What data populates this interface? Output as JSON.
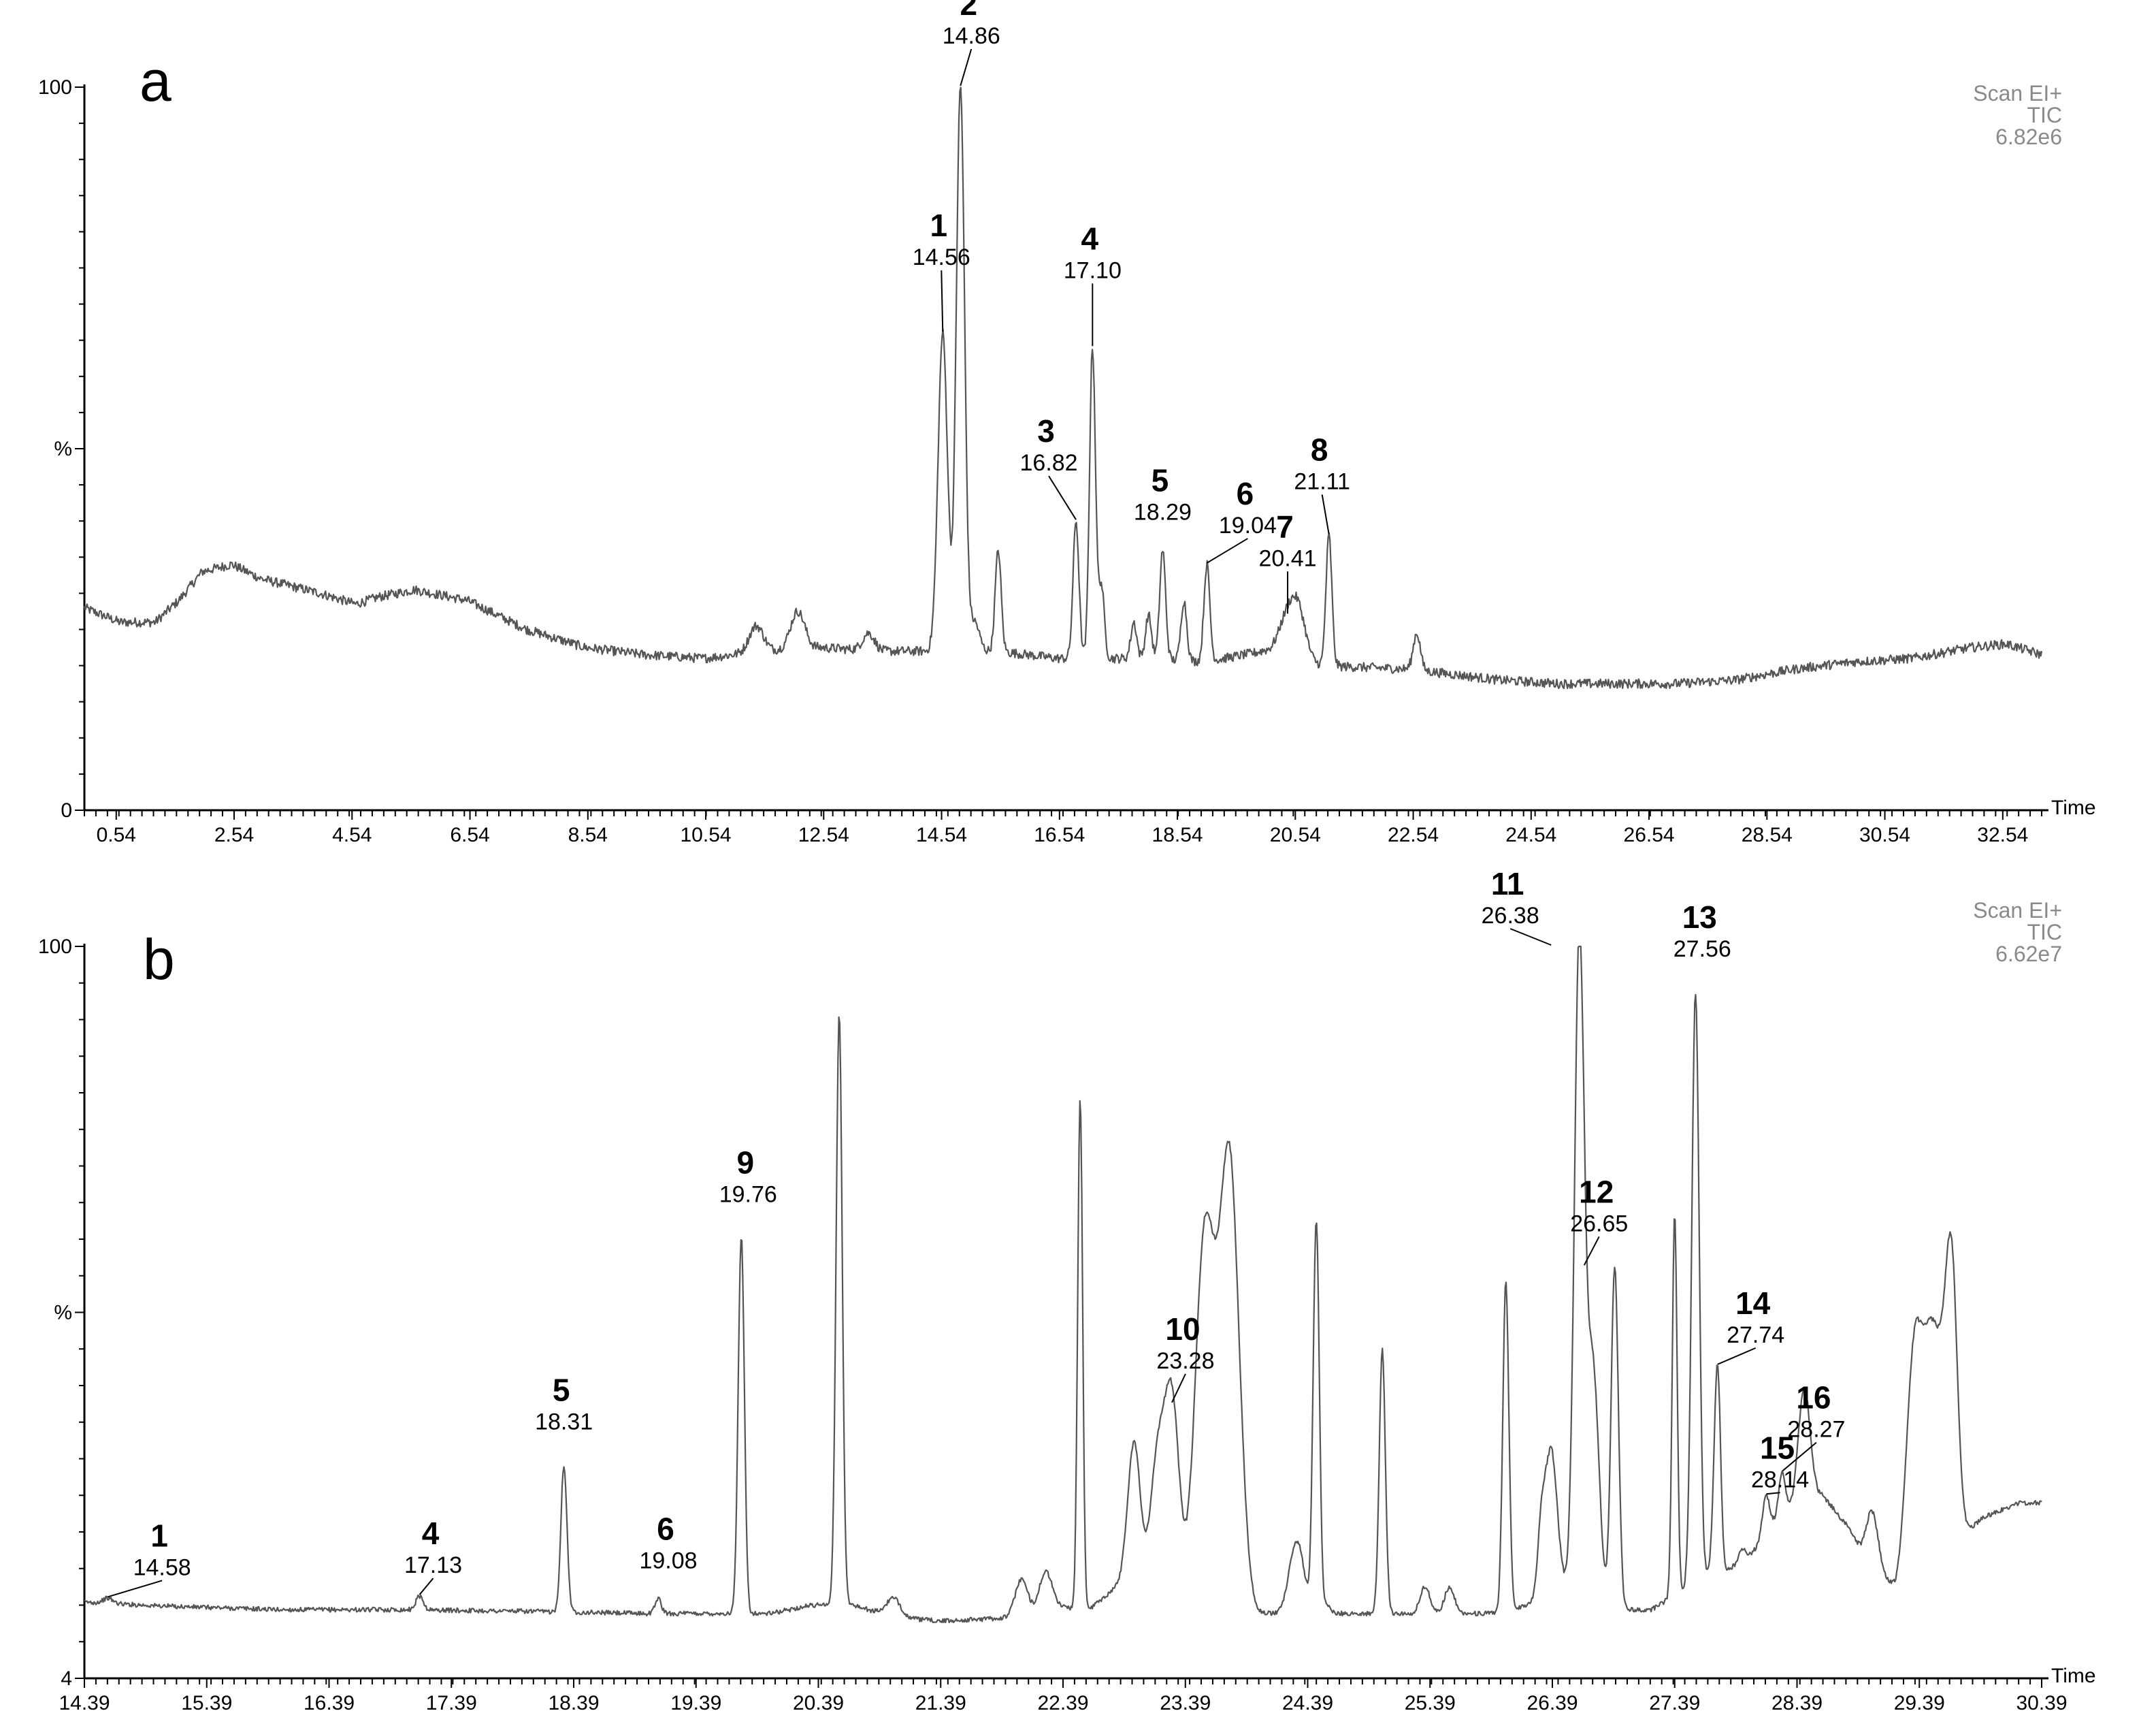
{
  "chart_data": [
    {
      "type": "line",
      "panel_label": "a",
      "info": [
        "Scan EI+",
        "TIC",
        "6.82e6"
      ],
      "xlabel": "Time",
      "ylabel": "%",
      "xlim": [
        0.0,
        33.2
      ],
      "ylim": [
        0,
        100
      ],
      "x_ticks": [
        "0.54",
        "2.54",
        "4.54",
        "6.54",
        "8.54",
        "10.54",
        "12.54",
        "14.54",
        "16.54",
        "18.54",
        "20.54",
        "22.54",
        "24.54",
        "26.54",
        "28.54",
        "30.54",
        "32.54"
      ],
      "x_tick_values": [
        0.54,
        2.54,
        4.54,
        6.54,
        8.54,
        10.54,
        12.54,
        14.54,
        16.54,
        18.54,
        20.54,
        22.54,
        24.54,
        26.54,
        28.54,
        30.54,
        32.54
      ],
      "y_ticks": [
        "0",
        "%",
        "100"
      ],
      "y_tick_values": [
        0,
        50,
        100
      ],
      "baseline": [
        [
          0.0,
          28
        ],
        [
          0.6,
          26
        ],
        [
          1.2,
          26
        ],
        [
          1.6,
          29
        ],
        [
          2.0,
          33
        ],
        [
          2.5,
          34
        ],
        [
          3.0,
          32
        ],
        [
          4.0,
          30
        ],
        [
          4.6,
          28.5
        ],
        [
          5.0,
          29.5
        ],
        [
          5.6,
          30.5
        ],
        [
          6.5,
          29
        ],
        [
          7.5,
          25
        ],
        [
          8.5,
          22.5
        ],
        [
          9.5,
          21.5
        ],
        [
          10.5,
          21
        ],
        [
          11.5,
          22
        ],
        [
          12.5,
          22.5
        ],
        [
          13.5,
          22
        ],
        [
          14.3,
          22
        ],
        [
          15.5,
          22
        ],
        [
          16.5,
          21
        ],
        [
          18.0,
          21
        ],
        [
          19.0,
          20.5
        ],
        [
          20.0,
          22
        ],
        [
          21.0,
          20
        ],
        [
          22.5,
          19.5
        ],
        [
          24.0,
          18
        ],
        [
          25.0,
          17.5
        ],
        [
          26.0,
          17.5
        ],
        [
          27.0,
          17.5
        ],
        [
          28.0,
          18
        ],
        [
          29.0,
          19.5
        ],
        [
          30.0,
          20.5
        ],
        [
          31.0,
          21
        ],
        [
          32.0,
          22.5
        ],
        [
          32.6,
          23
        ],
        [
          33.2,
          21.5
        ]
      ],
      "peaks": [
        {
          "x": 11.4,
          "y": 25.5,
          "w": 0.12
        },
        {
          "x": 12.1,
          "y": 27.5,
          "w": 0.12
        },
        {
          "x": 13.3,
          "y": 24.5,
          "w": 0.1
        },
        {
          "x": 14.56,
          "y": 66,
          "w": 0.08
        },
        {
          "x": 14.86,
          "y": 100,
          "w": 0.07
        },
        {
          "x": 15.1,
          "y": 26,
          "w": 0.08
        },
        {
          "x": 15.5,
          "y": 36,
          "w": 0.05
        },
        {
          "x": 16.82,
          "y": 40,
          "w": 0.05
        },
        {
          "x": 17.1,
          "y": 64,
          "w": 0.05
        },
        {
          "x": 17.25,
          "y": 31,
          "w": 0.05
        },
        {
          "x": 17.8,
          "y": 26,
          "w": 0.05
        },
        {
          "x": 18.05,
          "y": 27,
          "w": 0.05
        },
        {
          "x": 18.29,
          "y": 36,
          "w": 0.05
        },
        {
          "x": 18.65,
          "y": 29,
          "w": 0.05
        },
        {
          "x": 19.04,
          "y": 34,
          "w": 0.05
        },
        {
          "x": 20.41,
          "y": 27,
          "w": 0.15
        },
        {
          "x": 20.6,
          "y": 26,
          "w": 0.12
        },
        {
          "x": 21.11,
          "y": 38,
          "w": 0.05
        },
        {
          "x": 22.6,
          "y": 24.5,
          "w": 0.06
        }
      ],
      "labels": [
        {
          "num": "1",
          "rt": "14.56",
          "x": 14.56,
          "y": 66
        },
        {
          "num": "2",
          "rt": "14.86",
          "x": 14.86,
          "y": 100
        },
        {
          "num": "3",
          "rt": "16.82",
          "x": 16.82,
          "y": 40
        },
        {
          "num": "4",
          "rt": "17.10",
          "x": 17.1,
          "y": 64
        },
        {
          "num": "5",
          "rt": "18.29",
          "x": 18.29,
          "y": 36
        },
        {
          "num": "6",
          "rt": "19.04",
          "x": 19.04,
          "y": 34
        },
        {
          "num": "7",
          "rt": "20.41",
          "x": 20.41,
          "y": 27
        },
        {
          "num": "8",
          "rt": "21.11",
          "x": 21.11,
          "y": 38
        }
      ]
    },
    {
      "type": "line",
      "panel_label": "b",
      "info": [
        "Scan EI+",
        "TIC",
        "6.62e7"
      ],
      "xlabel": "Time",
      "ylabel": "%",
      "xlim": [
        14.39,
        30.39
      ],
      "ylim": [
        4,
        100
      ],
      "x_ticks": [
        "14.39",
        "15.39",
        "16.39",
        "17.39",
        "18.39",
        "19.39",
        "20.39",
        "21.39",
        "22.39",
        "23.39",
        "24.39",
        "25.39",
        "26.39",
        "27.39",
        "28.39",
        "29.39",
        "30.39"
      ],
      "x_tick_values": [
        14.39,
        15.39,
        16.39,
        17.39,
        18.39,
        19.39,
        20.39,
        21.39,
        22.39,
        23.39,
        24.39,
        25.39,
        26.39,
        27.39,
        28.39,
        29.39,
        30.39
      ],
      "y_ticks": [
        "4",
        "%",
        "100"
      ],
      "y_tick_values": [
        4,
        52,
        100
      ],
      "baseline": [
        [
          14.39,
          14
        ],
        [
          15.0,
          13.5
        ],
        [
          16.0,
          13
        ],
        [
          17.0,
          13
        ],
        [
          18.0,
          12.8
        ],
        [
          19.0,
          12.5
        ],
        [
          20.0,
          12.5
        ],
        [
          20.3,
          13.5
        ],
        [
          20.6,
          14
        ],
        [
          21.0,
          12
        ],
        [
          21.4,
          11.5
        ],
        [
          22.0,
          12
        ],
        [
          22.3,
          13.5
        ],
        [
          22.6,
          13
        ],
        [
          22.9,
          17
        ],
        [
          23.3,
          13
        ],
        [
          23.6,
          12.5
        ],
        [
          24.0,
          12.5
        ],
        [
          24.5,
          12.5
        ],
        [
          25.0,
          12.5
        ],
        [
          25.5,
          12.5
        ],
        [
          26.0,
          12.5
        ],
        [
          26.3,
          14.5
        ],
        [
          26.5,
          15.5
        ],
        [
          26.8,
          13
        ],
        [
          27.2,
          13
        ],
        [
          27.4,
          15
        ],
        [
          27.6,
          17
        ],
        [
          27.8,
          18
        ],
        [
          28.0,
          20
        ],
        [
          28.2,
          24
        ],
        [
          28.4,
          26
        ],
        [
          28.6,
          28
        ],
        [
          28.8,
          24
        ],
        [
          29.0,
          18
        ],
        [
          29.2,
          16
        ],
        [
          29.4,
          24
        ],
        [
          29.6,
          30
        ],
        [
          29.7,
          22
        ],
        [
          29.9,
          25
        ],
        [
          30.2,
          27
        ],
        [
          30.39,
          27
        ]
      ],
      "peaks": [
        {
          "x": 14.58,
          "y": 14.5,
          "w": 0.04
        },
        {
          "x": 17.13,
          "y": 14.8,
          "w": 0.03
        },
        {
          "x": 18.31,
          "y": 32,
          "w": 0.025
        },
        {
          "x": 19.08,
          "y": 14.5,
          "w": 0.025
        },
        {
          "x": 19.76,
          "y": 62,
          "w": 0.025
        },
        {
          "x": 20.56,
          "y": 91,
          "w": 0.025
        },
        {
          "x": 21.0,
          "y": 14.5,
          "w": 0.06
        },
        {
          "x": 22.05,
          "y": 17,
          "w": 0.05
        },
        {
          "x": 22.25,
          "y": 18,
          "w": 0.05
        },
        {
          "x": 22.53,
          "y": 80,
          "w": 0.02
        },
        {
          "x": 22.97,
          "y": 35,
          "w": 0.05
        },
        {
          "x": 23.16,
          "y": 32,
          "w": 0.06
        },
        {
          "x": 23.28,
          "y": 40,
          "w": 0.06
        },
        {
          "x": 23.55,
          "y": 62,
          "w": 0.08
        },
        {
          "x": 23.75,
          "y": 72,
          "w": 0.08
        },
        {
          "x": 24.3,
          "y": 22,
          "w": 0.06
        },
        {
          "x": 24.46,
          "y": 64,
          "w": 0.025
        },
        {
          "x": 24.55,
          "y": 13.5,
          "w": 0.03
        },
        {
          "x": 25.0,
          "y": 47,
          "w": 0.025
        },
        {
          "x": 25.35,
          "y": 16,
          "w": 0.04
        },
        {
          "x": 25.55,
          "y": 16,
          "w": 0.04
        },
        {
          "x": 26.01,
          "y": 56,
          "w": 0.025
        },
        {
          "x": 26.3,
          "y": 22,
          "w": 0.03
        },
        {
          "x": 26.38,
          "y": 34,
          "w": 0.05
        },
        {
          "x": 26.61,
          "y": 100,
          "w": 0.04
        },
        {
          "x": 26.72,
          "y": 45,
          "w": 0.05
        },
        {
          "x": 26.9,
          "y": 58,
          "w": 0.03
        },
        {
          "x": 27.39,
          "y": 65,
          "w": 0.02
        },
        {
          "x": 27.56,
          "y": 94,
          "w": 0.03
        },
        {
          "x": 27.7,
          "y": 20,
          "w": 0.02
        },
        {
          "x": 27.74,
          "y": 45,
          "w": 0.025
        },
        {
          "x": 27.95,
          "y": 21,
          "w": 0.03
        },
        {
          "x": 28.14,
          "y": 28,
          "w": 0.03
        },
        {
          "x": 28.27,
          "y": 31,
          "w": 0.03
        },
        {
          "x": 28.45,
          "y": 42,
          "w": 0.05
        },
        {
          "x": 29.0,
          "y": 26,
          "w": 0.05
        },
        {
          "x": 29.35,
          "y": 45,
          "w": 0.06
        },
        {
          "x": 29.5,
          "y": 50,
          "w": 0.08
        },
        {
          "x": 29.65,
          "y": 58,
          "w": 0.05
        }
      ],
      "labels": [
        {
          "num": "1",
          "rt": "14.58",
          "x": 14.58,
          "y": 14.5
        },
        {
          "num": "4",
          "rt": "17.13",
          "x": 17.13,
          "y": 14.8
        },
        {
          "num": "5",
          "rt": "18.31",
          "x": 18.31,
          "y": 32
        },
        {
          "num": "6",
          "rt": "19.08",
          "x": 19.08,
          "y": 14.5
        },
        {
          "num": "9",
          "rt": "19.76",
          "x": 19.76,
          "y": 62
        },
        {
          "num": "10",
          "rt": "23.28",
          "x": 23.28,
          "y": 40
        },
        {
          "num": "11",
          "rt": "26.38",
          "x": 26.38,
          "y": 100
        },
        {
          "num": "12",
          "rt": "26.65",
          "x": 26.65,
          "y": 58
        },
        {
          "num": "13",
          "rt": "27.56",
          "x": 27.56,
          "y": 94
        },
        {
          "num": "14",
          "rt": "27.74",
          "x": 27.74,
          "y": 45
        },
        {
          "num": "15",
          "rt": "28.14",
          "x": 28.14,
          "y": 28
        },
        {
          "num": "16",
          "rt": "28.27",
          "x": 28.27,
          "y": 31
        }
      ]
    }
  ]
}
